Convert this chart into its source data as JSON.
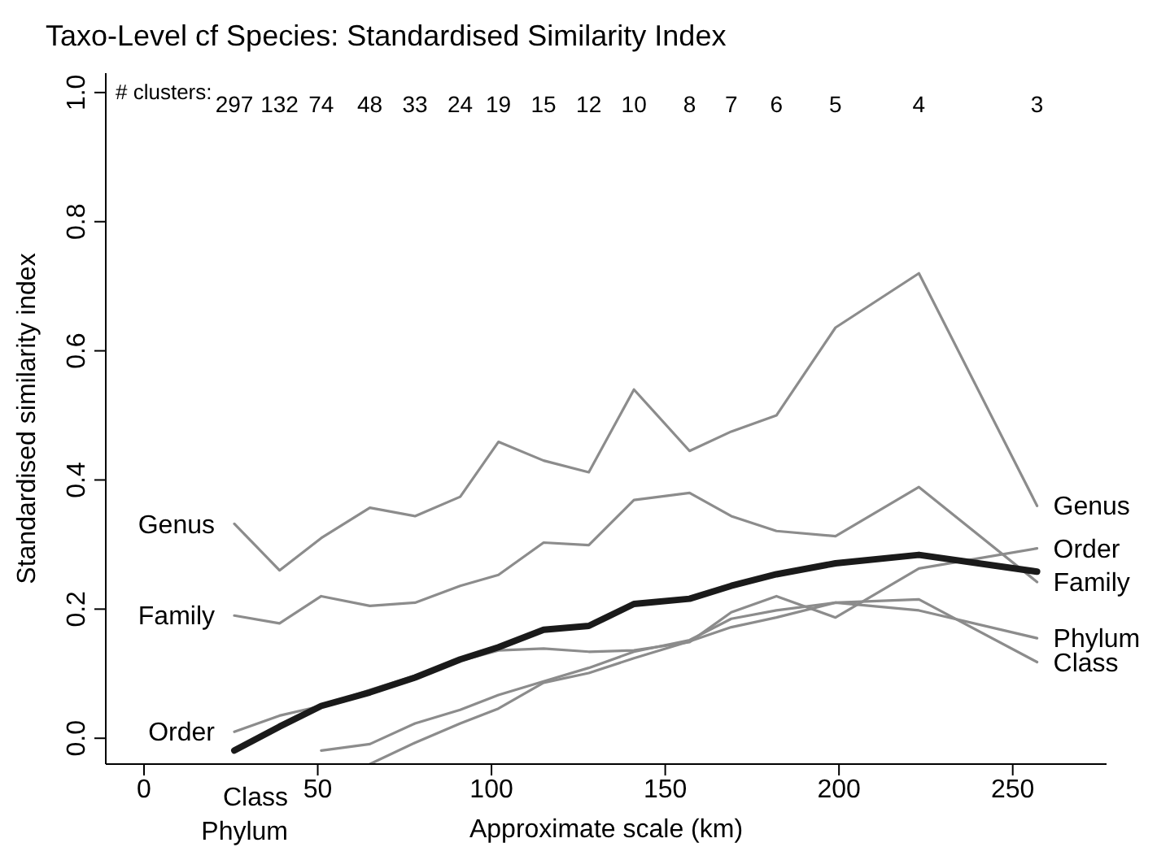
{
  "chart_data": {
    "type": "line",
    "title": "Taxo-Level cf Species: Standardised Similarity Index",
    "xlabel": "Approximate scale (km)",
    "ylabel": "Standardised similarity index",
    "x": [
      26,
      39,
      51,
      65,
      78,
      91,
      102,
      115,
      128,
      141,
      157,
      169,
      182,
      199,
      223,
      257
    ],
    "series": [
      {
        "name": "Genus",
        "color": "#8c8c8c",
        "values": [
          0.332,
          0.26,
          0.31,
          0.357,
          0.344,
          0.374,
          0.459,
          0.43,
          0.412,
          0.54,
          0.445,
          0.475,
          0.5,
          0.636,
          0.72,
          0.36
        ]
      },
      {
        "name": "Family",
        "color": "#8c8c8c",
        "values": [
          0.19,
          0.178,
          0.22,
          0.205,
          0.21,
          0.236,
          0.253,
          0.303,
          0.299,
          0.369,
          0.38,
          0.344,
          0.321,
          0.313,
          0.389,
          0.242
        ]
      },
      {
        "name": "Order",
        "color": "#8c8c8c",
        "values": [
          0.01,
          0.035,
          0.05,
          0.075,
          0.097,
          0.12,
          0.136,
          0.139,
          0.134,
          0.136,
          0.149,
          0.195,
          0.22,
          0.187,
          0.263,
          0.294
        ]
      },
      {
        "name": "Class",
        "color": "#8c8c8c",
        "values": [
          null,
          null,
          -0.019,
          -0.009,
          0.023,
          0.044,
          0.067,
          0.088,
          0.109,
          0.134,
          0.152,
          0.185,
          0.198,
          0.21,
          0.215,
          0.118
        ]
      },
      {
        "name": "Phylum",
        "color": "#8c8c8c",
        "values": [
          null,
          null,
          null,
          -0.04,
          -0.007,
          0.023,
          0.046,
          0.086,
          0.101,
          0.124,
          0.15,
          0.172,
          0.187,
          0.21,
          0.198,
          0.155
        ]
      },
      {
        "color": "#1a1a1a",
        "values": [
          -0.019,
          0.018,
          0.05,
          0.071,
          0.094,
          0.122,
          0.141,
          0.168,
          0.174,
          0.208,
          0.216,
          0.236,
          0.254,
          0.271,
          0.284,
          0.258
        ]
      }
    ],
    "xlim": [
      -11,
      277
    ],
    "xticks": [
      0,
      50,
      100,
      150,
      200,
      250
    ],
    "ylim": [
      -0.04,
      1.03
    ],
    "yticks": [
      {
        "value": 0,
        "label": "0.0"
      },
      {
        "value": 0.2,
        "label": "0.2"
      },
      {
        "value": 0.4,
        "label": "0.4"
      },
      {
        "value": 0.6,
        "label": "0.6"
      },
      {
        "value": 0.8,
        "label": "0.8"
      },
      {
        "value": 1,
        "label": "1.0"
      }
    ],
    "annotations": [
      "# clusters:",
      "297",
      "132",
      "74",
      "48",
      "33",
      "24",
      "19",
      "15",
      "12",
      "10",
      "8",
      "7",
      "6",
      "5",
      "4",
      "3"
    ],
    "grid": false,
    "legend": false,
    "marker": "none",
    "line_style": "solid"
  }
}
